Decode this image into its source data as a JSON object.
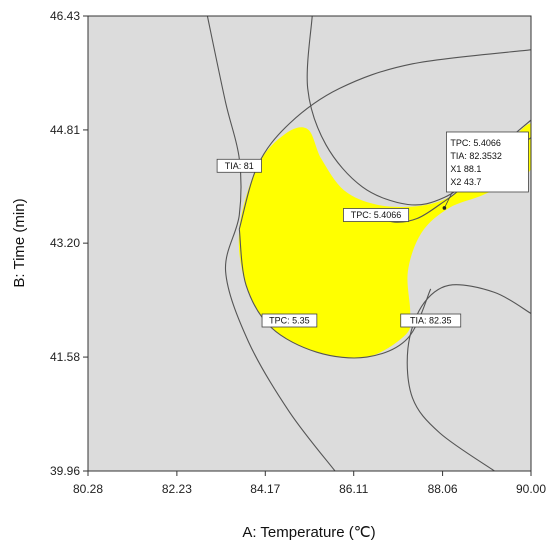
{
  "chart_data": {
    "type": "overlay-contour",
    "xlabel": "A: Temperature (℃)",
    "ylabel": "B: Time (min)",
    "xlim": [
      80.28,
      90.0
    ],
    "ylim": [
      39.96,
      46.43
    ],
    "x_ticks": [
      "80.28",
      "82.23",
      "84.17",
      "86.11",
      "88.06",
      "90.00"
    ],
    "y_ticks": [
      "39.96",
      "41.58",
      "43.20",
      "44.81",
      "46.43"
    ],
    "x_tick_values": [
      80.28,
      82.23,
      84.17,
      86.11,
      88.06,
      90.0
    ],
    "y_tick_values": [
      39.96,
      41.58,
      43.2,
      44.81,
      46.43
    ],
    "colors": {
      "background": "#dcdcdc",
      "feasible": "#ffff00",
      "contour": "#555555"
    },
    "contours": [
      {
        "label": "TIA: 81",
        "points": [
          [
            82.9,
            46.43
          ],
          [
            83.3,
            45.2
          ],
          [
            83.6,
            44.4
          ],
          [
            83.6,
            43.6
          ],
          [
            83.3,
            42.8
          ],
          [
            83.8,
            41.8
          ],
          [
            84.7,
            40.8
          ],
          [
            85.7,
            39.96
          ]
        ],
        "label_at": [
          83.6,
          44.3
        ]
      },
      {
        "label": "TIA: 82.35",
        "points": [
          [
            90.0,
            42.2
          ],
          [
            89.2,
            42.5
          ],
          [
            88.2,
            42.6
          ],
          [
            87.6,
            42.3
          ],
          [
            87.3,
            41.7
          ],
          [
            87.4,
            41.0
          ],
          [
            88.0,
            40.5
          ],
          [
            89.2,
            39.96
          ]
        ],
        "label_at": [
          87.8,
          42.1
        ]
      },
      {
        "label": "TIA: 82.35",
        "points": [
          [
            85.2,
            46.43
          ],
          [
            85.1,
            45.4
          ],
          [
            85.5,
            44.6
          ],
          [
            86.3,
            44.0
          ],
          [
            87.3,
            43.75
          ],
          [
            88.1,
            43.85
          ],
          [
            89.0,
            44.25
          ],
          [
            90.0,
            44.7
          ]
        ],
        "label_at": [
          null,
          null
        ]
      },
      {
        "label": "TPC: 5.35",
        "points": [
          [
            83.6,
            43.4
          ],
          [
            84.0,
            44.3
          ],
          [
            84.7,
            44.9
          ],
          [
            85.8,
            45.4
          ],
          [
            87.4,
            45.75
          ],
          [
            90.0,
            45.95
          ]
        ],
        "label_at": [
          null,
          null
        ]
      },
      {
        "label": "TPC: 5.35",
        "points": [
          [
            83.6,
            43.4
          ],
          [
            83.75,
            42.6
          ],
          [
            84.3,
            42.0
          ],
          [
            85.3,
            41.65
          ],
          [
            86.4,
            41.58
          ],
          [
            87.3,
            41.85
          ],
          [
            87.8,
            42.55
          ]
        ],
        "label_at": [
          84.7,
          42.1
        ]
      },
      {
        "label": "TPC: 5.4066",
        "points": [
          [
            86.5,
            43.6
          ],
          [
            87.0,
            43.5
          ],
          [
            87.5,
            43.55
          ],
          [
            88.0,
            43.75
          ],
          [
            88.5,
            44.0
          ],
          [
            89.2,
            44.5
          ],
          [
            90.0,
            44.95
          ]
        ],
        "label_at": [
          86.6,
          43.6
        ]
      }
    ],
    "feasible_region": [
      [
        85.1,
        44.82
      ],
      [
        85.4,
        44.4
      ],
      [
        85.9,
        43.95
      ],
      [
        86.6,
        43.75
      ],
      [
        87.4,
        43.72
      ],
      [
        88.1,
        43.82
      ],
      [
        88.6,
        44.05
      ],
      [
        89.2,
        44.4
      ],
      [
        90.0,
        44.9
      ],
      [
        90.0,
        44.25
      ],
      [
        89.0,
        43.9
      ],
      [
        88.2,
        43.7
      ],
      [
        87.6,
        43.35
      ],
      [
        87.3,
        42.8
      ],
      [
        87.35,
        42.2
      ],
      [
        87.25,
        41.9
      ],
      [
        86.4,
        41.58
      ],
      [
        85.3,
        41.65
      ],
      [
        84.3,
        42.0
      ],
      [
        83.75,
        42.6
      ],
      [
        83.6,
        43.4
      ],
      [
        84.0,
        44.3
      ],
      [
        84.6,
        44.75
      ]
    ],
    "flags": [
      {
        "label": "TIA: 81",
        "at": [
          83.6,
          44.3
        ]
      },
      {
        "label": "TIA: 82.35",
        "at": [
          87.8,
          42.1
        ]
      },
      {
        "label": "TPC: 5.35",
        "at": [
          84.7,
          42.1
        ]
      },
      {
        "label": "TPC: 5.4066",
        "at": [
          86.6,
          43.6
        ]
      }
    ],
    "prediction_flag": {
      "at": [
        88.1,
        43.7
      ],
      "lines": [
        "TPC:  5.4066",
        "TIA:  82.3532",
        "X1  88.1",
        "X2  43.7"
      ]
    }
  }
}
